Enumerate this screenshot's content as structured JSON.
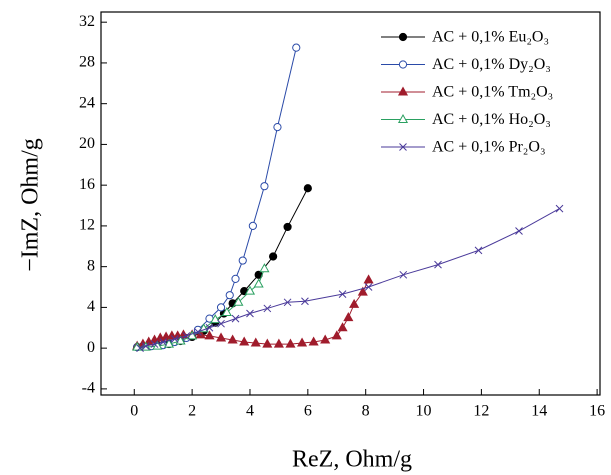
{
  "chart_data": {
    "type": "scatter",
    "x_label": "ReZ, Ohm/g",
    "y_label": "−ImZ, Ohm/g",
    "xlim": [
      -1.15,
      16.1
    ],
    "ylim": [
      -4.6,
      33.0
    ],
    "xticks": [
      0,
      2,
      4,
      6,
      8,
      10,
      12,
      14,
      16
    ],
    "yticks": [
      -4,
      0,
      4,
      8,
      12,
      16,
      20,
      24,
      28,
      32
    ],
    "legend": "upper right",
    "series": [
      {
        "name": "AC + 0,1% Eu₂O₃",
        "color": "#000000",
        "marker": "filled-circle",
        "x": [
          0.1,
          0.3,
          0.5,
          0.8,
          1.2,
          1.6,
          2.0,
          2.4,
          2.8,
          3.1,
          3.4,
          3.8,
          4.3,
          4.8,
          5.3,
          6.0
        ],
        "values": [
          0.1,
          0.2,
          0.2,
          0.3,
          0.4,
          0.7,
          1.1,
          1.7,
          2.5,
          3.4,
          4.4,
          5.6,
          7.2,
          9.0,
          11.9,
          15.7
        ]
      },
      {
        "name": "AC + 0,1% Dy₂O₃",
        "color": "#2a4aa8",
        "marker": "open-circle",
        "x": [
          0.1,
          0.3,
          0.6,
          1.0,
          1.4,
          1.8,
          2.2,
          2.6,
          3.0,
          3.3,
          3.5,
          3.75,
          4.1,
          4.5,
          4.95,
          5.6
        ],
        "values": [
          0.1,
          0.2,
          0.2,
          0.3,
          0.6,
          1.0,
          1.8,
          2.9,
          4.0,
          5.2,
          6.8,
          8.6,
          12.0,
          15.9,
          21.7,
          29.5
        ]
      },
      {
        "name": "AC + 0,1% Tm₂O₃",
        "color": "#a01c2c",
        "marker": "filled-triangle",
        "x": [
          0.1,
          0.3,
          0.5,
          0.7,
          0.9,
          1.1,
          1.3,
          1.5,
          1.7,
          2.0,
          2.3,
          2.6,
          3.0,
          3.4,
          3.8,
          4.2,
          4.6,
          5.0,
          5.4,
          5.8,
          6.2,
          6.6,
          7.0,
          7.2,
          7.4,
          7.6,
          7.9,
          8.1
        ],
        "values": [
          0.2,
          0.4,
          0.6,
          0.8,
          1.0,
          1.1,
          1.2,
          1.2,
          1.3,
          1.3,
          1.3,
          1.2,
          1.0,
          0.8,
          0.6,
          0.5,
          0.4,
          0.4,
          0.4,
          0.5,
          0.6,
          0.8,
          1.2,
          2.0,
          3.0,
          4.3,
          5.5,
          6.7
        ]
      },
      {
        "name": "AC + 0,1% Ho₂O₃",
        "color": "#2aa060",
        "marker": "open-triangle",
        "x": [
          0.1,
          0.4,
          0.8,
          1.2,
          1.6,
          2.0,
          2.4,
          2.8,
          3.2,
          3.6,
          4.0,
          4.3,
          4.5
        ],
        "values": [
          0.1,
          0.1,
          0.2,
          0.4,
          0.7,
          1.2,
          1.9,
          2.8,
          3.5,
          4.5,
          5.6,
          6.3,
          7.8
        ]
      },
      {
        "name": "AC + 0,1% Pr₂O₃",
        "color": "#4a3a9a",
        "marker": "cross",
        "x": [
          0.2,
          0.4,
          0.7,
          1.0,
          1.4,
          1.8,
          2.2,
          2.6,
          3.0,
          3.5,
          4.0,
          4.6,
          5.3,
          5.9,
          7.2,
          8.1,
          9.3,
          10.5,
          11.9,
          13.3,
          14.7
        ],
        "values": [
          0.0,
          0.2,
          0.4,
          0.6,
          0.9,
          1.2,
          1.6,
          2.0,
          2.4,
          2.9,
          3.4,
          3.9,
          4.5,
          4.6,
          5.3,
          6.0,
          7.2,
          8.2,
          9.6,
          11.5,
          13.7
        ]
      }
    ]
  }
}
